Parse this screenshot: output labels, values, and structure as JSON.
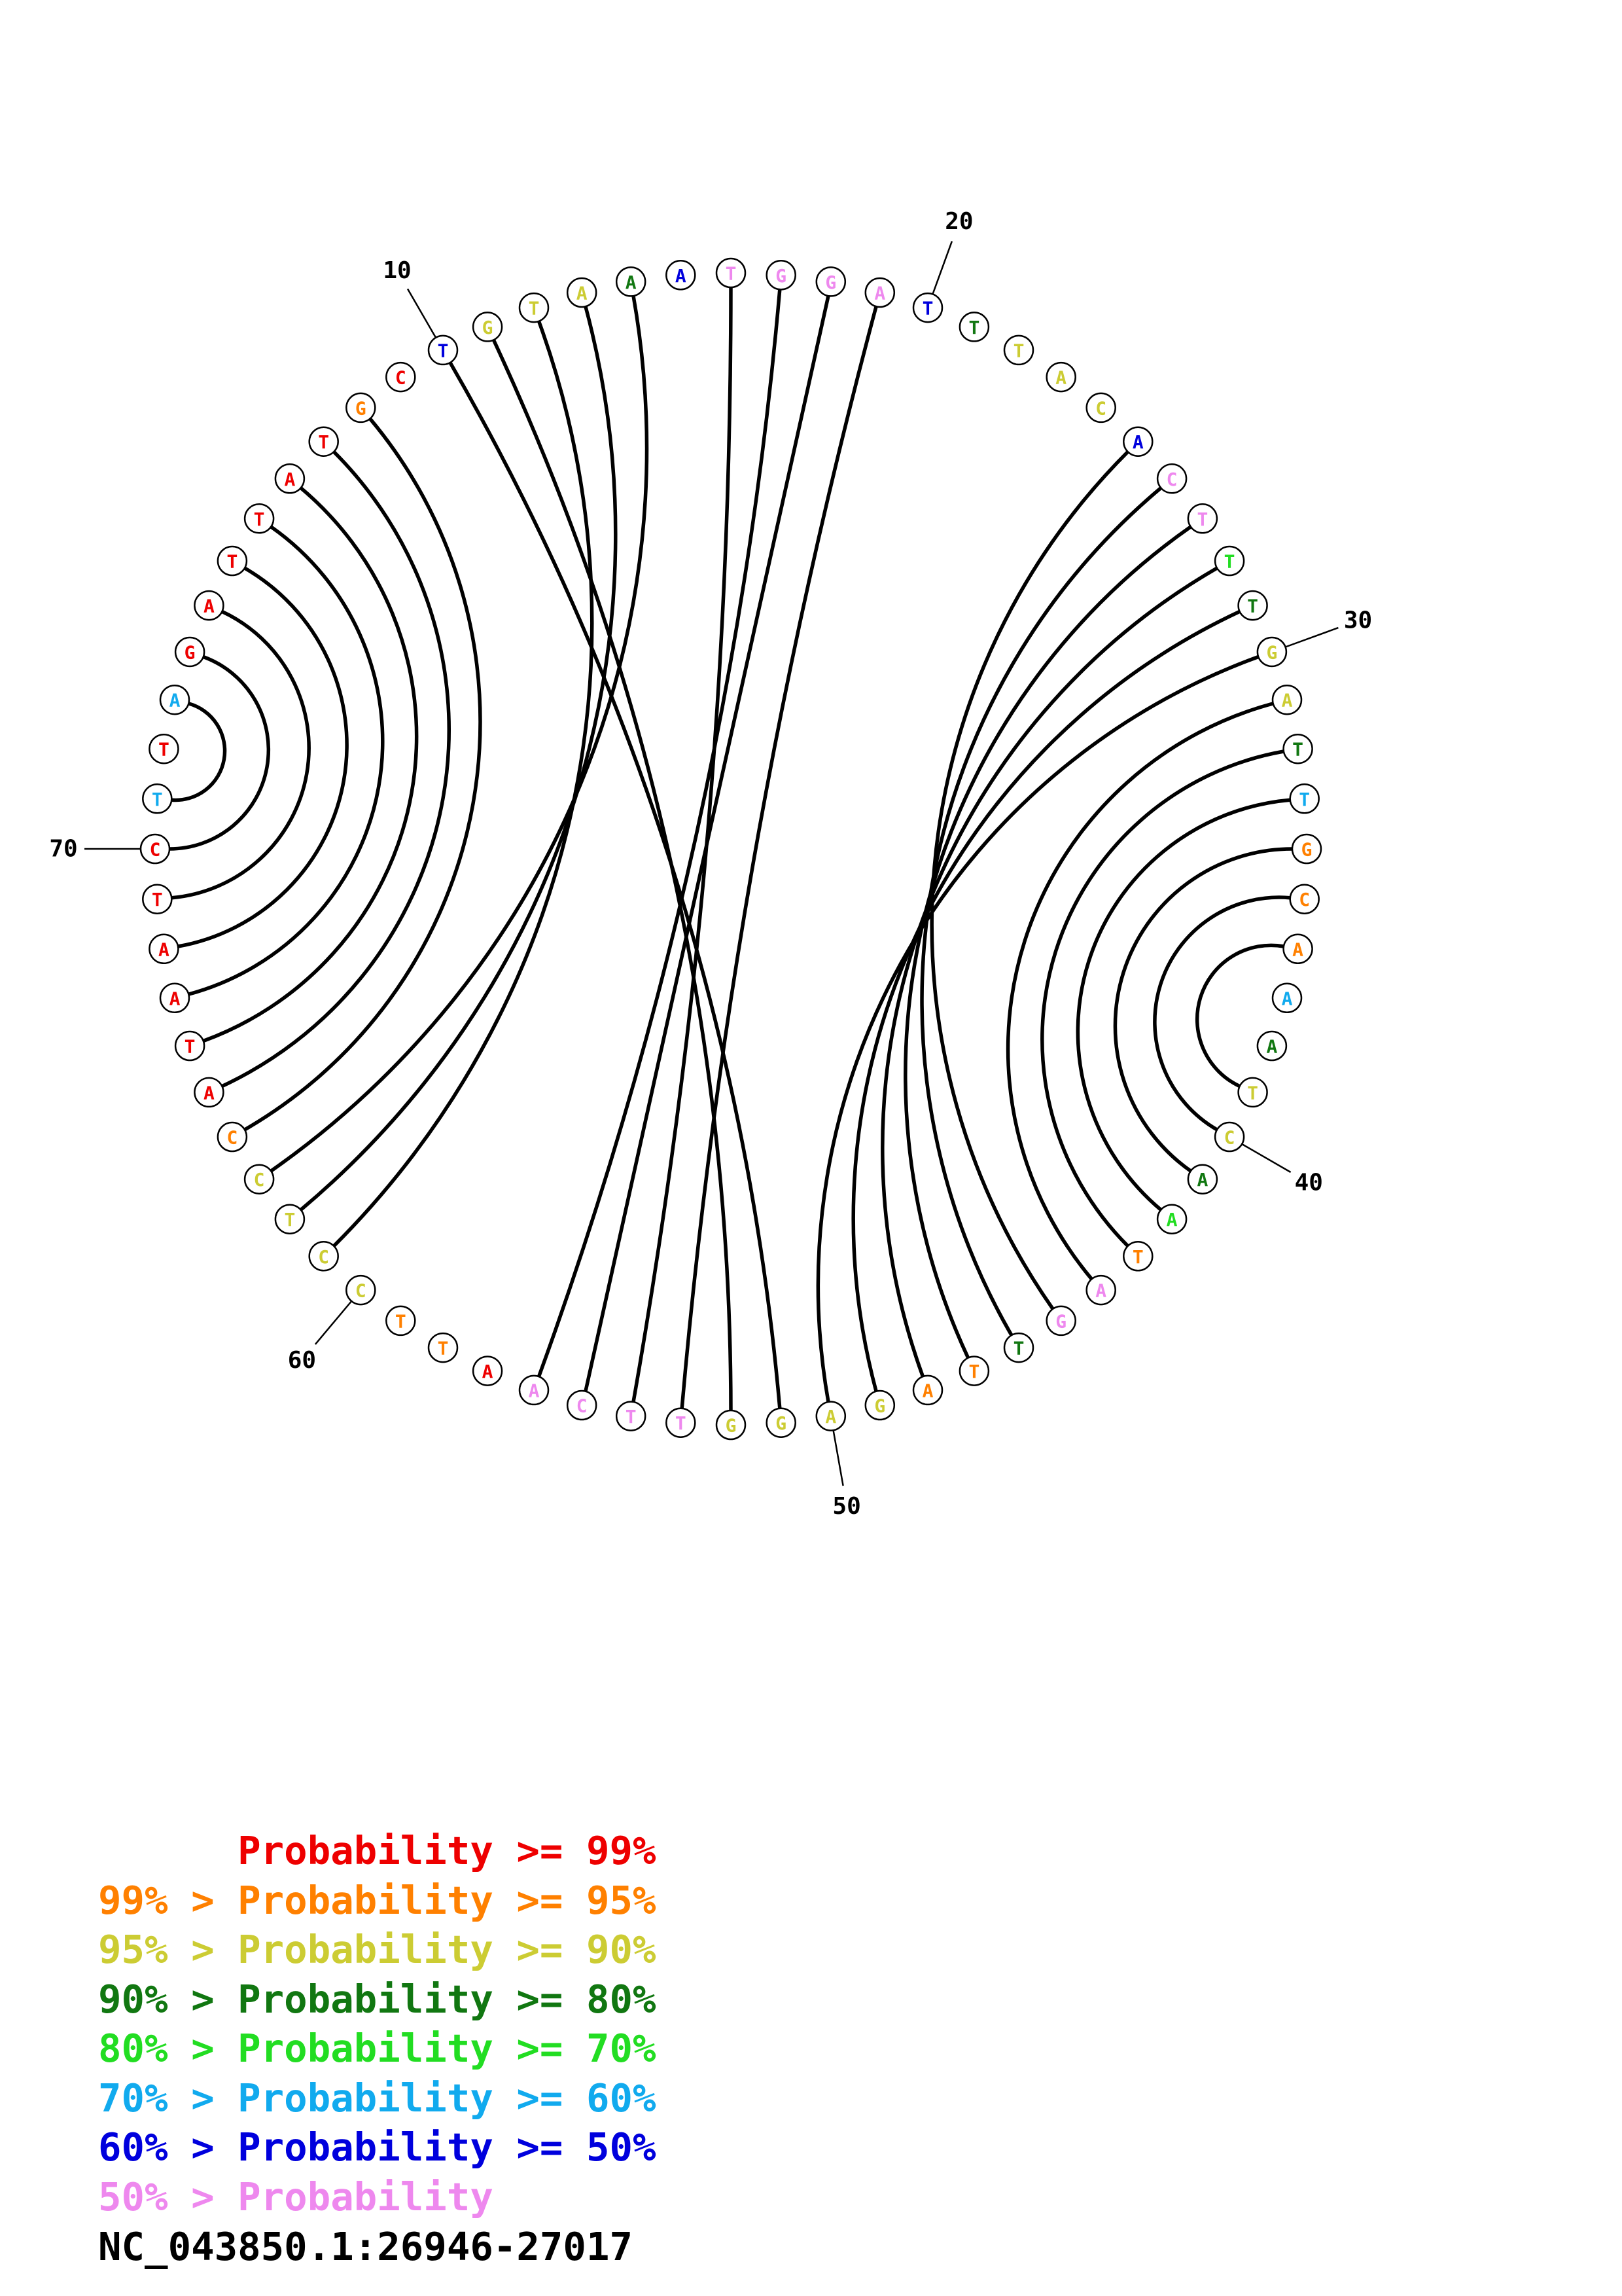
{
  "sequence_id": "NC_043850.1:26946-27017",
  "probability_colors": {
    "p99": "#ee0000",
    "p95": "#ff8000",
    "p90": "#cccc33",
    "p80": "#117711",
    "p70": "#22dd22",
    "p60": "#11aaee",
    "p50": "#0000dd",
    "plt50": "#ee88ee"
  },
  "legend": [
    {
      "text": "      Probability >= 99%",
      "color_key": "p99"
    },
    {
      "text": "99% > Probability >= 95%",
      "color_key": "p95"
    },
    {
      "text": "95% > Probability >= 90%",
      "color_key": "p90"
    },
    {
      "text": "90% > Probability >= 80%",
      "color_key": "p80"
    },
    {
      "text": "80% > Probability >= 70%",
      "color_key": "p70"
    },
    {
      "text": "70% > Probability >= 60%",
      "color_key": "p60"
    },
    {
      "text": "60% > Probability >= 50%",
      "color_key": "p50"
    },
    {
      "text": "50% > Probability",
      "color_key": "plt50"
    }
  ],
  "nucleotides": [
    {
      "n": 1,
      "base": "A",
      "p": "p60"
    },
    {
      "n": 2,
      "base": "G",
      "p": "p99"
    },
    {
      "n": 3,
      "base": "A",
      "p": "p99"
    },
    {
      "n": 4,
      "base": "T",
      "p": "p99"
    },
    {
      "n": 5,
      "base": "T",
      "p": "p99"
    },
    {
      "n": 6,
      "base": "A",
      "p": "p99"
    },
    {
      "n": 7,
      "base": "T",
      "p": "p99"
    },
    {
      "n": 8,
      "base": "G",
      "p": "p95"
    },
    {
      "n": 9,
      "base": "C",
      "p": "p99"
    },
    {
      "n": 10,
      "base": "T",
      "p": "p50"
    },
    {
      "n": 11,
      "base": "G",
      "p": "p90"
    },
    {
      "n": 12,
      "base": "T",
      "p": "p90"
    },
    {
      "n": 13,
      "base": "A",
      "p": "p90"
    },
    {
      "n": 14,
      "base": "A",
      "p": "p80"
    },
    {
      "n": 15,
      "base": "A",
      "p": "p50"
    },
    {
      "n": 16,
      "base": "T",
      "p": "plt50"
    },
    {
      "n": 17,
      "base": "G",
      "p": "plt50"
    },
    {
      "n": 18,
      "base": "G",
      "p": "plt50"
    },
    {
      "n": 19,
      "base": "A",
      "p": "plt50"
    },
    {
      "n": 20,
      "base": "T",
      "p": "p50"
    },
    {
      "n": 21,
      "base": "T",
      "p": "p80"
    },
    {
      "n": 22,
      "base": "T",
      "p": "p90"
    },
    {
      "n": 23,
      "base": "A",
      "p": "p90"
    },
    {
      "n": 24,
      "base": "C",
      "p": "p90"
    },
    {
      "n": 25,
      "base": "A",
      "p": "p50"
    },
    {
      "n": 26,
      "base": "C",
      "p": "plt50"
    },
    {
      "n": 27,
      "base": "T",
      "p": "plt50"
    },
    {
      "n": 28,
      "base": "T",
      "p": "p70"
    },
    {
      "n": 29,
      "base": "T",
      "p": "p80"
    },
    {
      "n": 30,
      "base": "G",
      "p": "p90"
    },
    {
      "n": 31,
      "base": "A",
      "p": "p90"
    },
    {
      "n": 32,
      "base": "T",
      "p": "p80"
    },
    {
      "n": 33,
      "base": "T",
      "p": "p60"
    },
    {
      "n": 34,
      "base": "G",
      "p": "p95"
    },
    {
      "n": 35,
      "base": "C",
      "p": "p95"
    },
    {
      "n": 36,
      "base": "A",
      "p": "p95"
    },
    {
      "n": 37,
      "base": "A",
      "p": "p60"
    },
    {
      "n": 38,
      "base": "A",
      "p": "p80"
    },
    {
      "n": 39,
      "base": "T",
      "p": "p90"
    },
    {
      "n": 40,
      "base": "C",
      "p": "p90"
    },
    {
      "n": 41,
      "base": "A",
      "p": "p80"
    },
    {
      "n": 42,
      "base": "A",
      "p": "p70"
    },
    {
      "n": 43,
      "base": "T",
      "p": "p95"
    },
    {
      "n": 44,
      "base": "A",
      "p": "plt50"
    },
    {
      "n": 45,
      "base": "G",
      "p": "plt50"
    },
    {
      "n": 46,
      "base": "T",
      "p": "p80"
    },
    {
      "n": 47,
      "base": "T",
      "p": "p95"
    },
    {
      "n": 48,
      "base": "A",
      "p": "p95"
    },
    {
      "n": 49,
      "base": "G",
      "p": "p90"
    },
    {
      "n": 50,
      "base": "A",
      "p": "p90"
    },
    {
      "n": 51,
      "base": "G",
      "p": "p90"
    },
    {
      "n": 52,
      "base": "G",
      "p": "p90"
    },
    {
      "n": 53,
      "base": "T",
      "p": "plt50"
    },
    {
      "n": 54,
      "base": "T",
      "p": "plt50"
    },
    {
      "n": 55,
      "base": "C",
      "p": "plt50"
    },
    {
      "n": 56,
      "base": "A",
      "p": "plt50"
    },
    {
      "n": 57,
      "base": "A",
      "p": "p99"
    },
    {
      "n": 58,
      "base": "T",
      "p": "p95"
    },
    {
      "n": 59,
      "base": "T",
      "p": "p95"
    },
    {
      "n": 60,
      "base": "C",
      "p": "p90"
    },
    {
      "n": 61,
      "base": "C",
      "p": "p90"
    },
    {
      "n": 62,
      "base": "T",
      "p": "p90"
    },
    {
      "n": 63,
      "base": "C",
      "p": "p90"
    },
    {
      "n": 64,
      "base": "C",
      "p": "p95"
    },
    {
      "n": 65,
      "base": "A",
      "p": "p99"
    },
    {
      "n": 66,
      "base": "T",
      "p": "p99"
    },
    {
      "n": 67,
      "base": "A",
      "p": "p99"
    },
    {
      "n": 68,
      "base": "A",
      "p": "p99"
    },
    {
      "n": 69,
      "base": "T",
      "p": "p99"
    },
    {
      "n": 70,
      "base": "C",
      "p": "p99"
    },
    {
      "n": 71,
      "base": "T",
      "p": "p60"
    },
    {
      "n": 72,
      "base": "T",
      "p": "p99"
    }
  ],
  "position_labels": [
    {
      "n": 10,
      "text": "10"
    },
    {
      "n": 20,
      "text": "20"
    },
    {
      "n": 30,
      "text": "30"
    },
    {
      "n": 40,
      "text": "40"
    },
    {
      "n": 50,
      "text": "50"
    },
    {
      "n": 60,
      "text": "60"
    },
    {
      "n": 70,
      "text": "70"
    }
  ],
  "base_pairs": [
    [
      1,
      71
    ],
    [
      2,
      70
    ],
    [
      3,
      69
    ],
    [
      4,
      68
    ],
    [
      5,
      67
    ],
    [
      6,
      66
    ],
    [
      7,
      65
    ],
    [
      8,
      64
    ],
    [
      10,
      51
    ],
    [
      11,
      52
    ],
    [
      12,
      61
    ],
    [
      13,
      62
    ],
    [
      14,
      63
    ],
    [
      16,
      54
    ],
    [
      17,
      56
    ],
    [
      18,
      55
    ],
    [
      19,
      53
    ],
    [
      25,
      45
    ],
    [
      26,
      46
    ],
    [
      27,
      47
    ],
    [
      28,
      48
    ],
    [
      29,
      49
    ],
    [
      30,
      50
    ],
    [
      31,
      44
    ],
    [
      32,
      43
    ],
    [
      33,
      42
    ],
    [
      34,
      41
    ],
    [
      35,
      40
    ],
    [
      36,
      39
    ]
  ]
}
